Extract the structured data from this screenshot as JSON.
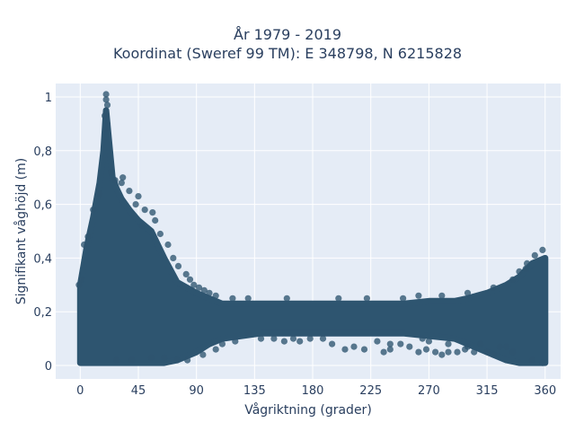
{
  "chart_data": {
    "type": "scatter",
    "title_lines": [
      "År 1979 - 2019",
      "Koordinat (Sweref 99 TM): E 348798, N 6215828"
    ],
    "xlabel": "Vågriktning (grader)",
    "ylabel": "Signifikant våghöjd (m)",
    "xlim": [
      -19,
      372
    ],
    "ylim": [
      -0.05,
      1.05
    ],
    "xticks": [
      0,
      45,
      90,
      135,
      180,
      225,
      270,
      315,
      360
    ],
    "xtick_labels": [
      "0",
      "45",
      "90",
      "135",
      "180",
      "225",
      "270",
      "315",
      "360"
    ],
    "yticks": [
      0,
      0.2,
      0.4,
      0.6,
      0.8,
      1
    ],
    "ytick_labels": [
      "0",
      "0,2",
      "0,4",
      "0,6",
      "0,8",
      "1"
    ],
    "grid": true,
    "marker_color": "#2e5570",
    "background": "#e5ecf6",
    "grid_color": "#ffffff",
    "series": [
      {
        "envelope": {
          "direction": [
            0,
            5,
            10,
            15,
            18,
            20,
            22,
            25,
            28,
            32,
            38,
            45,
            55,
            65,
            75,
            90,
            100,
            110,
            125,
            140,
            160,
            180,
            200,
            225,
            250,
            270,
            290,
            300,
            315,
            330,
            340,
            350,
            360
          ],
          "height_max": [
            0.3,
            0.44,
            0.55,
            0.68,
            0.8,
            0.95,
            0.85,
            0.7,
            0.66,
            0.62,
            0.58,
            0.54,
            0.5,
            0.4,
            0.31,
            0.27,
            0.25,
            0.23,
            0.23,
            0.23,
            0.23,
            0.23,
            0.23,
            0.23,
            0.23,
            0.24,
            0.24,
            0.25,
            0.27,
            0.3,
            0.33,
            0.38,
            0.4
          ],
          "height_min": [
            0.01,
            0.01,
            0.01,
            0.01,
            0.01,
            0.01,
            0.01,
            0.01,
            0.01,
            0.01,
            0.01,
            0.01,
            0.01,
            0.01,
            0.02,
            0.05,
            0.08,
            0.1,
            0.11,
            0.12,
            0.12,
            0.12,
            0.12,
            0.12,
            0.12,
            0.11,
            0.1,
            0.08,
            0.05,
            0.02,
            0.01,
            0.01,
            0.01
          ]
        },
        "points": [
          [
            20,
            1.01
          ],
          [
            20,
            0.99
          ],
          [
            21,
            0.97
          ],
          [
            19,
            0.93
          ],
          [
            21,
            0.9
          ],
          [
            20,
            0.88
          ],
          [
            24,
            0.72
          ],
          [
            27,
            0.69
          ],
          [
            32,
            0.68
          ],
          [
            38,
            0.65
          ],
          [
            45,
            0.63
          ],
          [
            33,
            0.7
          ],
          [
            43,
            0.6
          ],
          [
            50,
            0.58
          ],
          [
            56,
            0.57
          ],
          [
            58,
            0.54
          ],
          [
            62,
            0.49
          ],
          [
            48,
            0.52
          ],
          [
            68,
            0.45
          ],
          [
            72,
            0.4
          ],
          [
            76,
            0.37
          ],
          [
            82,
            0.34
          ],
          [
            85,
            0.32
          ],
          [
            88,
            0.3
          ],
          [
            92,
            0.29
          ],
          [
            96,
            0.28
          ],
          [
            100,
            0.27
          ],
          [
            105,
            0.26
          ],
          [
            118,
            0.25
          ],
          [
            130,
            0.25
          ],
          [
            160,
            0.25
          ],
          [
            200,
            0.25
          ],
          [
            222,
            0.25
          ],
          [
            250,
            0.25
          ],
          [
            262,
            0.26
          ],
          [
            280,
            0.26
          ],
          [
            300,
            0.27
          ],
          [
            320,
            0.29
          ],
          [
            335,
            0.32
          ],
          [
            345,
            0.36
          ],
          [
            352,
            0.41
          ],
          [
            358,
            0.43
          ],
          [
            346,
            0.38
          ],
          [
            340,
            0.35
          ],
          [
            15,
            0.64
          ],
          [
            10,
            0.58
          ],
          [
            6,
            0.48
          ],
          [
            3,
            0.45
          ],
          [
            1,
            0.32
          ],
          [
            -1,
            0.3
          ],
          [
            28,
            0.02
          ],
          [
            40,
            0.02
          ],
          [
            55,
            0.03
          ],
          [
            65,
            0.03
          ],
          [
            75,
            0.02
          ],
          [
            83,
            0.02
          ],
          [
            95,
            0.04
          ],
          [
            105,
            0.06
          ],
          [
            120,
            0.09
          ],
          [
            140,
            0.1
          ],
          [
            158,
            0.09
          ],
          [
            165,
            0.1
          ],
          [
            178,
            0.1
          ],
          [
            188,
            0.1
          ],
          [
            195,
            0.08
          ],
          [
            205,
            0.06
          ],
          [
            212,
            0.07
          ],
          [
            220,
            0.06
          ],
          [
            235,
            0.05
          ],
          [
            240,
            0.06
          ],
          [
            248,
            0.08
          ],
          [
            255,
            0.07
          ],
          [
            262,
            0.05
          ],
          [
            268,
            0.06
          ],
          [
            275,
            0.05
          ],
          [
            280,
            0.04
          ],
          [
            285,
            0.05
          ],
          [
            292,
            0.05
          ],
          [
            300,
            0.07
          ],
          [
            305,
            0.05
          ],
          [
            315,
            0.05
          ],
          [
            320,
            0.04
          ],
          [
            325,
            0.07
          ],
          [
            335,
            0.05
          ],
          [
            350,
            0.02
          ],
          [
            358,
            0.01
          ],
          [
            130,
            0.12
          ],
          [
            110,
            0.08
          ],
          [
            150,
            0.1
          ],
          [
            170,
            0.09
          ],
          [
            230,
            0.09
          ],
          [
            240,
            0.08
          ],
          [
            265,
            0.1
          ],
          [
            270,
            0.09
          ],
          [
            285,
            0.08
          ],
          [
            298,
            0.06
          ],
          [
            310,
            0.08
          ],
          [
            330,
            0.07
          ]
        ]
      }
    ]
  }
}
